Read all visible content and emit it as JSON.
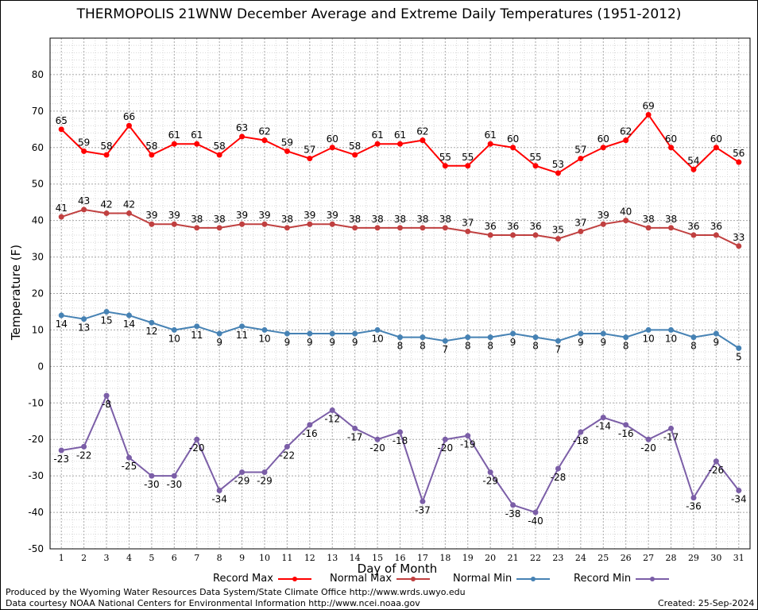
{
  "title": "THERMOPOLIS 21WNW December Average and Extreme Daily Temperatures (1951-2012)",
  "footer": {
    "credit1": "Produced by the Wyoming Water Resources Data System/State Climate Office http://www.wrds.uwyo.edu",
    "credit2": "Data courtesy NOAA National Centers for Environmental Information http://www.ncei.noaa.gov",
    "created": "Created:  25-Sep-2024"
  },
  "chart_data": {
    "type": "line",
    "title": "THERMOPOLIS 21WNW December Average and Extreme Daily Temperatures (1951-2012)",
    "xlabel": "Day of Month",
    "ylabel": "Temperature (F)",
    "ylim": [
      -50,
      90
    ],
    "yticks": [
      -50,
      -40,
      -30,
      -20,
      -10,
      0,
      10,
      20,
      30,
      40,
      50,
      60,
      70,
      80
    ],
    "x": [
      1,
      2,
      3,
      4,
      5,
      6,
      7,
      8,
      9,
      10,
      11,
      12,
      13,
      14,
      15,
      16,
      17,
      18,
      19,
      20,
      21,
      22,
      23,
      24,
      25,
      26,
      27,
      28,
      29,
      30,
      31
    ],
    "grid": true,
    "legend_position": "bottom",
    "series": [
      {
        "name": "Record Max",
        "color": "#ff0000",
        "values": [
          65,
          59,
          58,
          66,
          58,
          61,
          61,
          58,
          63,
          62,
          59,
          57,
          60,
          58,
          61,
          61,
          62,
          55,
          55,
          61,
          60,
          55,
          53,
          57,
          60,
          62,
          69,
          60,
          54,
          60,
          56
        ]
      },
      {
        "name": "Normal Max",
        "color": "#c04040",
        "values": [
          41,
          43,
          42,
          42,
          39,
          39,
          38,
          38,
          39,
          39,
          38,
          39,
          39,
          38,
          38,
          38,
          38,
          38,
          37,
          36,
          36,
          36,
          35,
          37,
          39,
          40,
          38,
          38,
          36,
          36,
          33
        ]
      },
      {
        "name": "Normal Min",
        "color": "#4682b4",
        "values": [
          14,
          13,
          15,
          14,
          12,
          10,
          11,
          9,
          11,
          10,
          9,
          9,
          9,
          9,
          10,
          8,
          8,
          7,
          8,
          8,
          9,
          8,
          7,
          9,
          9,
          8,
          10,
          10,
          8,
          9,
          5
        ]
      },
      {
        "name": "Record Min",
        "color": "#7b5ea7",
        "values": [
          -23,
          -22,
          -8,
          -25,
          -30,
          -30,
          -20,
          -34,
          -29,
          -29,
          -22,
          -16,
          -12,
          -17,
          -20,
          -18,
          -37,
          -20,
          -19,
          -29,
          -38,
          -40,
          -28,
          -18,
          -14,
          -16,
          -20,
          -17,
          -36,
          -26,
          -34
        ]
      }
    ]
  }
}
